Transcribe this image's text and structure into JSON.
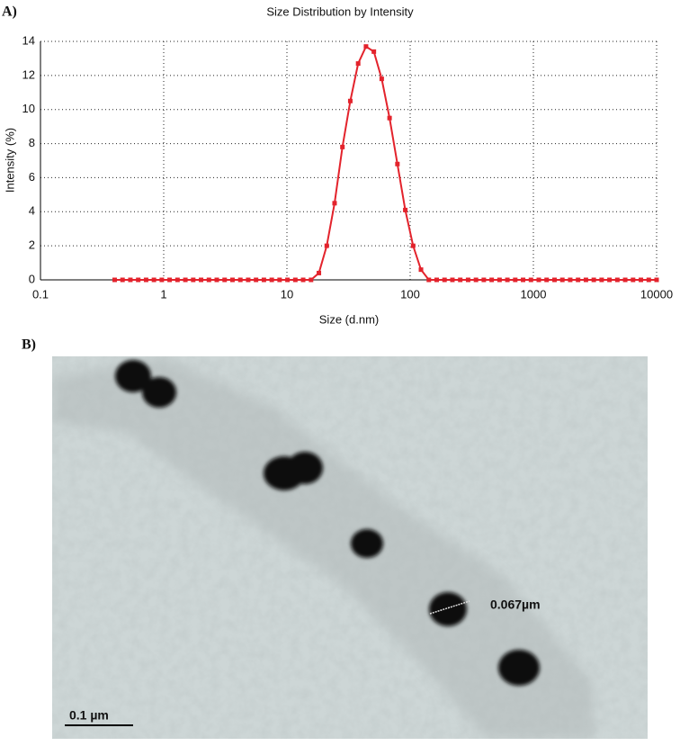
{
  "panel_a_label": "A)",
  "chart_data": {
    "type": "line",
    "title": "Size Distribution by Intensity",
    "x_label": "Size (d.nm)",
    "y_label": "Intensity (%)",
    "xscale": "log",
    "xlim": [
      0.1,
      10000
    ],
    "xticks": [
      0.1,
      1,
      10,
      100,
      1000,
      10000
    ],
    "ylim": [
      0,
      14
    ],
    "yticks": [
      0,
      2,
      4,
      6,
      8,
      10,
      12,
      14
    ],
    "grid": true,
    "x": [
      0.4,
      0.4632,
      0.5365,
      0.6213,
      0.7195,
      0.8332,
      0.9649,
      1.117,
      1.294,
      1.499,
      1.736,
      2.01,
      2.328,
      2.696,
      3.122,
      3.615,
      4.187,
      4.849,
      5.615,
      6.503,
      7.531,
      8.721,
      10.1,
      11.7,
      13.54,
      15.69,
      18.17,
      21.04,
      24.36,
      28.21,
      32.67,
      37.84,
      43.82,
      50.75,
      58.77,
      68.06,
      78.82,
      91.28,
      105.7,
      122.4,
      141.8,
      164.2,
      190.1,
      220.2,
      255.0,
      295.3,
      342.0,
      396.1,
      458.7,
      531.2,
      615.1,
      712.4,
      825.0,
      955.4,
      1106,
      1281,
      1484,
      1718,
      1990,
      2305,
      2669,
      3091,
      3580,
      4145,
      4801,
      5560,
      6439,
      7456,
      8635,
      10000
    ],
    "series": [
      {
        "color": "#e3232c",
        "values": [
          0,
          0,
          0,
          0,
          0,
          0,
          0,
          0,
          0,
          0,
          0,
          0,
          0,
          0,
          0,
          0,
          0,
          0,
          0,
          0,
          0,
          0,
          0,
          0,
          0,
          0,
          0.4,
          2.0,
          4.5,
          7.8,
          10.5,
          12.7,
          13.7,
          13.4,
          11.8,
          9.5,
          6.8,
          4.1,
          2.0,
          0.6,
          0,
          0,
          0,
          0,
          0,
          0,
          0,
          0,
          0,
          0,
          0,
          0,
          0,
          0,
          0,
          0,
          0,
          0,
          0,
          0,
          0,
          0,
          0,
          0,
          0,
          0,
          0,
          0,
          0,
          0
        ]
      }
    ]
  },
  "image": {
    "panel_label": "B)",
    "measurement_label": "0.067µm",
    "scale_bar_label": "0.1 µm"
  }
}
